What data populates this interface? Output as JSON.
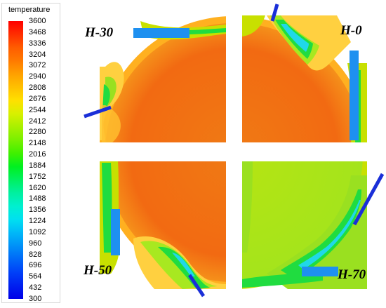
{
  "legend": {
    "title": "temperature",
    "ticks": [
      "3600",
      "3468",
      "3336",
      "3204",
      "3072",
      "2940",
      "2808",
      "2676",
      "2544",
      "2412",
      "2280",
      "2148",
      "2016",
      "1884",
      "1752",
      "1620",
      "1488",
      "1356",
      "1224",
      "1092",
      "960",
      "828",
      "696",
      "564",
      "432",
      "300"
    ],
    "colors": [
      "#ff0000",
      "#ff2e00",
      "#ff5c00",
      "#ff7a00",
      "#ffa000",
      "#ffc000",
      "#ffe000",
      "#d8f000",
      "#a8f000",
      "#78f000",
      "#40f000",
      "#00f020",
      "#00f060",
      "#00f0a0",
      "#00f0d0",
      "#00e0f0",
      "#00b8f8",
      "#0090f8",
      "#0068f8",
      "#0040f8",
      "#0020f0",
      "#0000e8"
    ]
  },
  "panels": {
    "top_left": {
      "label_main": "H",
      "label_sub": "-30"
    },
    "top_right": {
      "label_main": "H",
      "label_sub": "-0"
    },
    "bottom_left": {
      "label_main": "H",
      "label_sub": "-50"
    },
    "bottom_right": {
      "label_main": "H",
      "label_sub": "-70"
    }
  },
  "colors": {
    "hot": "#f25a10",
    "hot_mid": "#f07a14",
    "warm": "#ffa020",
    "mild": "#c8e000",
    "lime": "#a8e81c",
    "green": "#20dc40",
    "cyan": "#20d8e8",
    "jet_blue": "#1e90f0",
    "injector": "#1a2fd8"
  }
}
